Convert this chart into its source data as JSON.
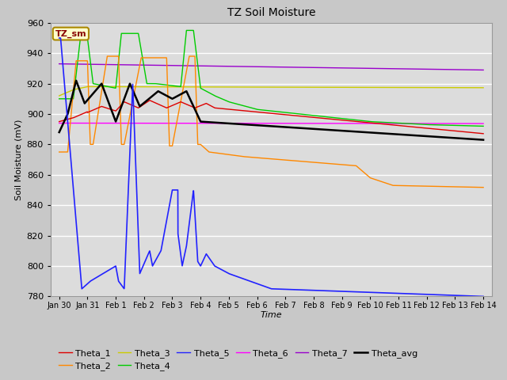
{
  "title": "TZ Soil Moisture",
  "xlabel": "Time",
  "ylabel": "Soil Moisture (mV)",
  "ylim": [
    780,
    960
  ],
  "xlim": [
    -0.3,
    15.3
  ],
  "legend_label": "TZ_sm",
  "xtick_labels": [
    "Jan 30",
    "Jan 31",
    "Feb 1",
    "Feb 2",
    "Feb 3",
    "Feb 4",
    "Feb 5",
    "Feb 6",
    "Feb 7",
    "Feb 8",
    "Feb 9",
    "Feb 10",
    "Feb 11",
    "Feb 12",
    "Feb 13",
    "Feb 14"
  ],
  "xtick_positions": [
    0,
    1,
    2,
    3,
    4,
    5,
    6,
    7,
    8,
    9,
    10,
    11,
    12,
    13,
    14,
    15
  ],
  "series_colors": {
    "Theta_1": "#dd0000",
    "Theta_2": "#ff8800",
    "Theta_3": "#cccc00",
    "Theta_4": "#00cc00",
    "Theta_5": "#2222ff",
    "Theta_6": "#ff00ff",
    "Theta_7": "#9900cc",
    "Theta_avg": "#000000"
  }
}
